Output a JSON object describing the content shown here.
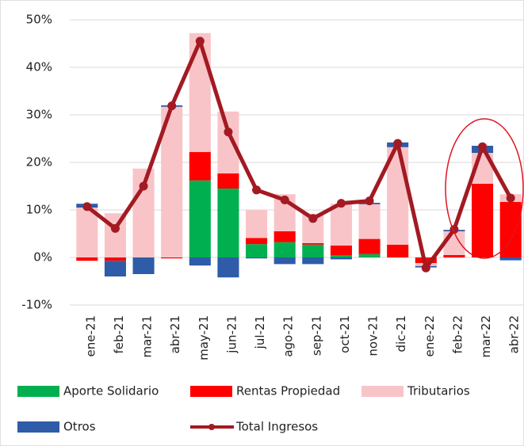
{
  "chart_data": {
    "type": "bar",
    "categories": [
      "ene-21",
      "feb-21",
      "mar-21",
      "abr-21",
      "may-21",
      "jun-21",
      "jul-21",
      "ago-21",
      "sep-21",
      "oct-21",
      "nov-21",
      "dic-21",
      "ene-22",
      "feb-22",
      "mar-22",
      "abr-22"
    ],
    "series": [
      {
        "name": "Aporte Solidario",
        "color": "#00b050",
        "values": [
          0,
          0,
          0,
          0,
          16.2,
          14.5,
          2.8,
          3.2,
          2.7,
          0.5,
          0.7,
          0,
          0,
          0,
          0,
          0
        ]
      },
      {
        "name": "Rentas Propiedad",
        "color": "#ff0000",
        "values": [
          -0.7,
          -0.7,
          0,
          -0.2,
          6.0,
          3.2,
          1.3,
          2.3,
          0.3,
          2.0,
          3.2,
          2.7,
          -1.2,
          0.5,
          15.5,
          11.7
        ]
      },
      {
        "name": "Tributarios",
        "color": "#f9c4c8",
        "values": [
          10.5,
          9.3,
          18.7,
          31.7,
          25.0,
          13.0,
          5.9,
          7.8,
          6.2,
          8.8,
          7.3,
          20.5,
          -0.6,
          5.0,
          6.5,
          1.6
        ]
      },
      {
        "name": "Otros",
        "color": "#2e5ca8",
        "values": [
          0.8,
          -3.3,
          -3.5,
          0.3,
          -1.7,
          -4.2,
          -0.2,
          -1.4,
          -1.4,
          -0.4,
          0.3,
          1.0,
          -0.3,
          0.3,
          1.5,
          -0.6
        ]
      },
      {
        "name": "Total Ingresos",
        "type": "line",
        "color": "#a31a22",
        "values": [
          10.7,
          6.1,
          15.0,
          31.9,
          45.5,
          26.4,
          14.2,
          12.1,
          8.2,
          11.4,
          11.9,
          24.0,
          -2.2,
          5.9,
          23.3,
          12.5
        ]
      }
    ],
    "ylim": [
      -10,
      50
    ],
    "yticks": [
      {
        "value": -10,
        "label": "-10%"
      },
      {
        "value": 0,
        "label": "0%"
      },
      {
        "value": 10,
        "label": "10%"
      },
      {
        "value": 20,
        "label": "20%"
      },
      {
        "value": 30,
        "label": "30%"
      },
      {
        "value": 40,
        "label": "40%"
      },
      {
        "value": 50,
        "label": "50%"
      }
    ],
    "grid": true,
    "legend": "bottom"
  }
}
